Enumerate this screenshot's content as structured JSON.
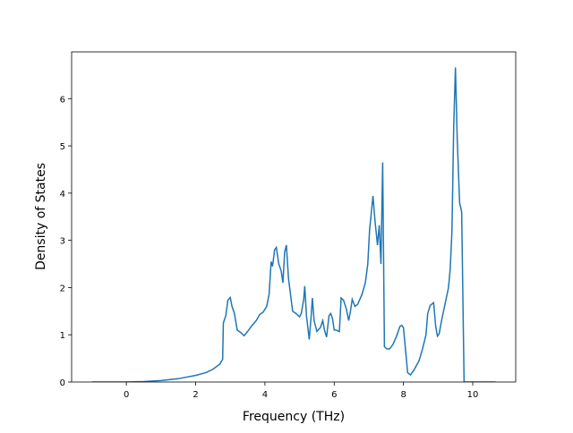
{
  "chart_data": {
    "type": "line",
    "x_label": "Frequency (THz)",
    "y_label": "Density of States",
    "x": [
      -1,
      0,
      0.5,
      1,
      1.5,
      2,
      2.3,
      2.5,
      2.7,
      2.78,
      2.8,
      2.87,
      2.93,
      3.0,
      3.05,
      3.12,
      3.2,
      3.3,
      3.4,
      3.5,
      3.6,
      3.75,
      3.85,
      3.95,
      4.05,
      4.12,
      4.18,
      4.22,
      4.28,
      4.33,
      4.4,
      4.47,
      4.52,
      4.57,
      4.62,
      4.68,
      4.8,
      4.9,
      5.0,
      5.05,
      5.12,
      5.15,
      5.2,
      5.28,
      5.33,
      5.37,
      5.42,
      5.5,
      5.6,
      5.67,
      5.72,
      5.78,
      5.85,
      5.9,
      5.95,
      6.0,
      6.05,
      6.15,
      6.2,
      6.27,
      6.35,
      6.42,
      6.47,
      6.52,
      6.6,
      6.68,
      6.8,
      6.9,
      6.97,
      7.02,
      7.12,
      7.18,
      7.25,
      7.3,
      7.35,
      7.4,
      7.45,
      7.52,
      7.6,
      7.7,
      7.8,
      7.9,
      7.95,
      8.0,
      8.07,
      8.12,
      8.2,
      8.3,
      8.45,
      8.55,
      8.65,
      8.7,
      8.77,
      8.87,
      8.93,
      8.98,
      9.03,
      9.1,
      9.2,
      9.3,
      9.35,
      9.4,
      9.45,
      9.5,
      9.55,
      9.62,
      9.68,
      9.75,
      10.66
    ],
    "series": [
      {
        "name": "DOS",
        "color": "#1f77b4",
        "values": [
          0,
          0,
          0.01,
          0.03,
          0.07,
          0.14,
          0.2,
          0.27,
          0.38,
          0.48,
          1.25,
          1.4,
          1.73,
          1.79,
          1.6,
          1.45,
          1.1,
          1.05,
          0.98,
          1.07,
          1.17,
          1.3,
          1.43,
          1.48,
          1.6,
          1.85,
          2.55,
          2.45,
          2.8,
          2.85,
          2.5,
          2.35,
          2.1,
          2.75,
          2.9,
          2.2,
          1.5,
          1.45,
          1.38,
          1.45,
          1.75,
          2.03,
          1.4,
          0.9,
          1.35,
          1.78,
          1.3,
          1.07,
          1.15,
          1.3,
          1.1,
          0.95,
          1.4,
          1.45,
          1.35,
          1.1,
          1.1,
          1.07,
          1.78,
          1.73,
          1.55,
          1.3,
          1.5,
          1.75,
          1.6,
          1.65,
          1.85,
          2.1,
          2.5,
          3.2,
          3.94,
          3.4,
          2.9,
          3.32,
          2.5,
          4.65,
          0.75,
          0.7,
          0.7,
          0.8,
          0.97,
          1.18,
          1.2,
          1.15,
          0.6,
          0.2,
          0.15,
          0.25,
          0.45,
          0.7,
          1.0,
          1.45,
          1.62,
          1.68,
          1.18,
          0.97,
          1.02,
          1.3,
          1.65,
          2.0,
          2.4,
          3.2,
          5.4,
          6.66,
          5.2,
          3.8,
          3.6,
          0,
          0
        ]
      }
    ],
    "xlim": [
      -1.58,
      11.24
    ],
    "ylim": [
      0,
      6.99
    ],
    "xticks": [
      0,
      2,
      4,
      6,
      8,
      10
    ],
    "yticks": [
      0,
      1,
      2,
      3,
      4,
      5,
      6
    ]
  }
}
